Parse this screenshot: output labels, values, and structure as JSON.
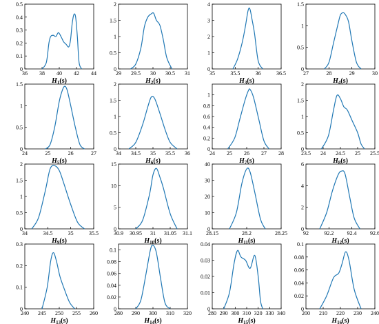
{
  "chart_data": [
    {
      "type": "line",
      "xlabel": {
        "sym": "H",
        "sub": "1",
        "unit": "(s)"
      },
      "xlim": [
        36,
        44
      ],
      "ylim": [
        0,
        0.5
      ],
      "xticks": [
        "36",
        "38",
        "40",
        "42",
        "44"
      ],
      "yticks": [
        "0",
        "0.1",
        "0.2",
        "0.3",
        "0.4",
        "0.5"
      ],
      "x": [
        38,
        38.5,
        38.8,
        39.0,
        39.3,
        39.6,
        39.9,
        40.2,
        40.5,
        40.8,
        41.1,
        41.3,
        41.5,
        41.7,
        41.9,
        42.1,
        42.3,
        42.6
      ],
      "y": [
        0,
        0.05,
        0.2,
        0.25,
        0.26,
        0.25,
        0.28,
        0.25,
        0.21,
        0.19,
        0.17,
        0.22,
        0.35,
        0.42,
        0.4,
        0.25,
        0.05,
        0
      ]
    },
    {
      "type": "line",
      "xlabel": {
        "sym": "H",
        "sub": "2",
        "unit": "(s)"
      },
      "xlim": [
        29,
        31
      ],
      "ylim": [
        0,
        2
      ],
      "xticks": [
        "29",
        "29.5",
        "30",
        "30.5",
        "31"
      ],
      "yticks": [
        "0",
        "0.5",
        "1",
        "1.5",
        "2"
      ],
      "x": [
        29.35,
        29.5,
        29.65,
        29.75,
        29.85,
        29.95,
        30.02,
        30.1,
        30.2,
        30.3,
        30.4,
        30.55
      ],
      "y": [
        0,
        0.15,
        0.65,
        1.3,
        1.6,
        1.7,
        1.72,
        1.5,
        1.35,
        0.9,
        0.35,
        0
      ]
    },
    {
      "type": "line",
      "xlabel": {
        "sym": "H",
        "sub": "3",
        "unit": "(s)"
      },
      "xlim": [
        35,
        36.5
      ],
      "ylim": [
        0,
        4
      ],
      "xticks": [
        "35",
        "35.5",
        "36",
        "36.5"
      ],
      "yticks": [
        "0",
        "1",
        "2",
        "3",
        "4"
      ],
      "x": [
        35.45,
        35.55,
        35.65,
        35.72,
        35.78,
        35.82,
        35.87,
        35.92,
        36.0,
        36.1
      ],
      "y": [
        0,
        0.6,
        1.6,
        2.6,
        3.6,
        3.7,
        3.0,
        2.2,
        0.5,
        0
      ]
    },
    {
      "type": "line",
      "xlabel": {
        "sym": "H",
        "sub": "4",
        "unit": "(s)"
      },
      "xlim": [
        27,
        30
      ],
      "ylim": [
        0,
        1.5
      ],
      "xticks": [
        "27",
        "28",
        "29",
        "30"
      ],
      "yticks": [
        "0",
        "0.5",
        "1",
        "1.5"
      ],
      "x": [
        27.8,
        28.0,
        28.2,
        28.4,
        28.5,
        28.6,
        28.7,
        28.85,
        29.0,
        29.2,
        29.4
      ],
      "y": [
        0,
        0.15,
        0.6,
        1.05,
        1.25,
        1.3,
        1.27,
        1.1,
        0.65,
        0.15,
        0
      ]
    },
    {
      "type": "line",
      "xlabel": {
        "sym": "H",
        "sub": "5",
        "unit": "(s)"
      },
      "xlim": [
        24,
        27
      ],
      "ylim": [
        0,
        1.5
      ],
      "xticks": [
        "24",
        "25",
        "26",
        "27"
      ],
      "yticks": [
        "0",
        "0.5",
        "1",
        "1.5"
      ],
      "x": [
        24.9,
        25.1,
        25.3,
        25.5,
        25.65,
        25.75,
        25.85,
        26.0,
        26.2,
        26.4,
        26.6
      ],
      "y": [
        0,
        0.1,
        0.5,
        1.1,
        1.38,
        1.45,
        1.35,
        1.0,
        0.5,
        0.1,
        0
      ]
    },
    {
      "type": "line",
      "xlabel": {
        "sym": "H",
        "sub": "6",
        "unit": "(s)"
      },
      "xlim": [
        34,
        36
      ],
      "ylim": [
        0,
        2
      ],
      "xticks": [
        "34",
        "34.5",
        "35",
        "35.5",
        "36"
      ],
      "yticks": [
        "0",
        "0.5",
        "1",
        "1.5",
        "2"
      ],
      "x": [
        34.3,
        34.5,
        34.7,
        34.85,
        34.95,
        35.05,
        35.2,
        35.35,
        35.5,
        35.7
      ],
      "y": [
        0,
        0.2,
        0.75,
        1.3,
        1.6,
        1.55,
        1.1,
        0.6,
        0.2,
        0
      ]
    },
    {
      "type": "line",
      "xlabel": {
        "sym": "H",
        "sub": "7",
        "unit": "(s)"
      },
      "xlim": [
        24,
        28
      ],
      "ylim": [
        0,
        1.2
      ],
      "xticks": [
        "24",
        "25",
        "26",
        "27",
        "28"
      ],
      "yticks": [
        "0",
        "0.2",
        "0.4",
        "0.6",
        "0.8",
        "1"
      ],
      "x": [
        24.9,
        25.3,
        25.6,
        25.9,
        26.1,
        26.2,
        26.4,
        26.7,
        27.0,
        27.3
      ],
      "y": [
        0,
        0.2,
        0.55,
        0.9,
        1.08,
        1.1,
        0.95,
        0.55,
        0.15,
        0
      ]
    },
    {
      "type": "line",
      "xlabel": {
        "sym": "H",
        "sub": "8",
        "unit": "(s)"
      },
      "xlim": [
        23.5,
        25.5
      ],
      "ylim": [
        0,
        2
      ],
      "xticks": [
        "23.5",
        "24",
        "24.5",
        "25",
        "25.5"
      ],
      "yticks": [
        "0",
        "0.5",
        "1",
        "1.5",
        "2"
      ],
      "x": [
        23.95,
        24.15,
        24.3,
        24.4,
        24.5,
        24.6,
        24.7,
        24.85,
        25.0,
        25.1,
        25.2
      ],
      "y": [
        0,
        0.4,
        1.2,
        1.65,
        1.55,
        1.3,
        1.2,
        0.85,
        0.5,
        0.15,
        0
      ]
    },
    {
      "type": "line",
      "xlabel": {
        "sym": "H",
        "sub": "9",
        "unit": "(s)"
      },
      "xlim": [
        34,
        35.5
      ],
      "ylim": [
        0,
        2
      ],
      "xticks": [
        "34",
        "34.5",
        "35",
        "35.5"
      ],
      "yticks": [
        "0",
        "0.5",
        "1",
        "1.5",
        "2"
      ],
      "x": [
        34.15,
        34.3,
        34.45,
        34.55,
        34.65,
        34.75,
        34.85,
        35.0,
        35.15,
        35.3
      ],
      "y": [
        0,
        0.35,
        1.2,
        1.85,
        1.95,
        1.8,
        1.4,
        0.75,
        0.2,
        0
      ]
    },
    {
      "type": "line",
      "xlabel": {
        "sym": "H",
        "sub": "10",
        "unit": "(s)"
      },
      "xlim": [
        30.9,
        31.1
      ],
      "ylim": [
        0,
        15
      ],
      "xticks": [
        "30.9",
        "30.95",
        "31",
        "31.05",
        "31.1"
      ],
      "yticks": [
        "0",
        "5",
        "10",
        "15"
      ],
      "x": [
        30.95,
        30.97,
        30.99,
        31.0,
        31.01,
        31.02,
        31.03,
        31.05,
        31.07
      ],
      "y": [
        0,
        2,
        8,
        12.5,
        14,
        12,
        9.5,
        3.5,
        0
      ]
    },
    {
      "type": "line",
      "xlabel": {
        "sym": "H",
        "sub": "11",
        "unit": "(s)"
      },
      "xlim": [
        28.15,
        28.25
      ],
      "ylim": [
        0,
        40
      ],
      "xticks": [
        "28.15",
        "28.2",
        "28.25"
      ],
      "yticks": [
        "0",
        "10",
        "20",
        "30",
        "40"
      ],
      "x": [
        28.175,
        28.185,
        28.193,
        28.2,
        28.205,
        28.212,
        28.22,
        28.227
      ],
      "y": [
        0,
        10,
        28,
        37,
        35,
        22,
        6,
        0
      ]
    },
    {
      "type": "line",
      "xlabel": {
        "sym": "H",
        "sub": "12",
        "unit": "(s)"
      },
      "xlim": [
        92,
        92.6
      ],
      "ylim": [
        0,
        6
      ],
      "xticks": [
        "92",
        "92.2",
        "92.4",
        "92.6"
      ],
      "yticks": [
        "0",
        "2",
        "4",
        "6"
      ],
      "x": [
        92.12,
        92.18,
        92.23,
        92.28,
        92.31,
        92.34,
        92.38,
        92.42,
        92.47
      ],
      "y": [
        0,
        1.5,
        3.5,
        5.0,
        5.35,
        5.1,
        3.0,
        1.0,
        0
      ]
    },
    {
      "type": "line",
      "xlabel": {
        "sym": "H",
        "sub": "13",
        "unit": "(s)"
      },
      "xlim": [
        240,
        260
      ],
      "ylim": [
        0,
        0.3
      ],
      "xticks": [
        "240",
        "245",
        "250",
        "255",
        "260"
      ],
      "yticks": [
        "0",
        "0.1",
        "0.2",
        "0.3"
      ],
      "x": [
        245,
        246.5,
        247.5,
        248.3,
        249.2,
        250.2,
        251.5,
        253,
        254.5
      ],
      "y": [
        0,
        0.1,
        0.22,
        0.26,
        0.22,
        0.15,
        0.09,
        0.03,
        0
      ]
    },
    {
      "type": "line",
      "xlabel": {
        "sym": "H",
        "sub": "14",
        "unit": "(s)"
      },
      "xlim": [
        280,
        320
      ],
      "ylim": [
        0,
        0.11
      ],
      "xticks": [
        "280",
        "290",
        "300",
        "310",
        "320"
      ],
      "yticks": [
        "0",
        "0.02",
        "0.04",
        "0.06",
        "0.08",
        "0.1"
      ],
      "x": [
        290,
        293,
        296,
        298.5,
        300,
        302,
        304.5,
        307,
        310
      ],
      "y": [
        0,
        0.015,
        0.06,
        0.1,
        0.108,
        0.095,
        0.05,
        0.01,
        0
      ]
    },
    {
      "type": "line",
      "xlabel": {
        "sym": "H",
        "sub": "15",
        "unit": "(s)"
      },
      "xlim": [
        280,
        340
      ],
      "ylim": [
        0,
        0.04
      ],
      "xticks": [
        "280",
        "290",
        "300",
        "310",
        "320",
        "330",
        "340"
      ],
      "yticks": [
        "0",
        "0.01",
        "0.02",
        "0.03",
        "0.04"
      ],
      "x": [
        290,
        295,
        299,
        302,
        305,
        309,
        313,
        317,
        320,
        322,
        324
      ],
      "y": [
        0,
        0.01,
        0.028,
        0.036,
        0.032,
        0.03,
        0.025,
        0.033,
        0.02,
        0.005,
        0
      ]
    },
    {
      "type": "line",
      "xlabel": {
        "sym": "H",
        "sub": "16",
        "unit": "(s)"
      },
      "xlim": [
        200,
        240
      ],
      "ylim": [
        0,
        0.1
      ],
      "xticks": [
        "200",
        "210",
        "220",
        "230",
        "240"
      ],
      "yticks": [
        "0",
        "0.02",
        "0.04",
        "0.06",
        "0.08",
        "0.1"
      ],
      "x": [
        208,
        212,
        216,
        219,
        221,
        223,
        225,
        228,
        232
      ],
      "y": [
        0,
        0.02,
        0.048,
        0.055,
        0.07,
        0.088,
        0.075,
        0.03,
        0
      ]
    }
  ]
}
